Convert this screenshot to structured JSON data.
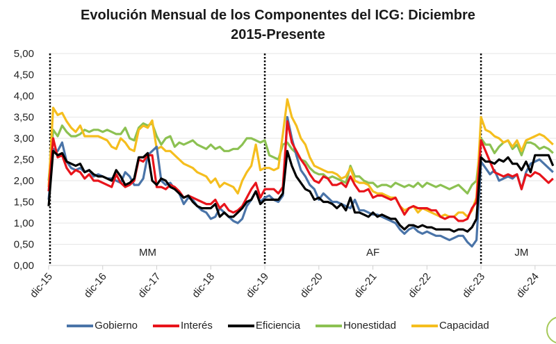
{
  "chart_data": {
    "type": "line",
    "title": "Evolución Mensual de los Componentes del ICG: Diciembre 2015-Presente",
    "title_lines": [
      "Evolución Mensual de los Componentes del ICG: Diciembre",
      "2015-Presente"
    ],
    "xlabel": "",
    "ylabel": "",
    "ylim": [
      0,
      5
    ],
    "yticks": [
      "0,00",
      "0,50",
      "1,00",
      "1,50",
      "2,00",
      "2,50",
      "3,00",
      "3,50",
      "4,00",
      "4,50",
      "5,00"
    ],
    "ytick_values": [
      0,
      0.5,
      1,
      1.5,
      2,
      2.5,
      3,
      3.5,
      4,
      4.5,
      5
    ],
    "x_start": "dic-15",
    "x_frequency": "monthly",
    "n_points": 113,
    "xticks": [
      "dic-15",
      "dic-16",
      "dic-17",
      "dic-18",
      "dic-19",
      "dic-20",
      "dic-21",
      "dic-22",
      "dic-23",
      "dic-24"
    ],
    "xtick_indices": [
      0,
      12,
      24,
      36,
      48,
      60,
      72,
      84,
      96,
      108
    ],
    "grid": true,
    "legend_position": "bottom",
    "period_dividers": [
      {
        "index": 0,
        "style": "dotted"
      },
      {
        "index": 48,
        "style": "dotted"
      },
      {
        "index": 96,
        "style": "dotted"
      }
    ],
    "period_labels": [
      {
        "label": "MM",
        "center_index": 22
      },
      {
        "label": "AF",
        "center_index": 72
      },
      {
        "label": "JM",
        "center_index": 105
      }
    ],
    "series": [
      {
        "name": "Gobierno",
        "color": "#4a74a8",
        "values": [
          1.55,
          2.75,
          2.7,
          2.9,
          2.45,
          2.3,
          2.25,
          2.3,
          2.2,
          2.25,
          2.1,
          2.15,
          2.1,
          2.05,
          2.05,
          2.0,
          1.95,
          2.2,
          2.1,
          1.9,
          1.9,
          2.05,
          2.6,
          2.7,
          2.8,
          2.0,
          1.9,
          1.95,
          1.8,
          1.7,
          1.45,
          1.6,
          1.55,
          1.4,
          1.3,
          1.25,
          1.1,
          1.15,
          1.35,
          1.25,
          1.15,
          1.05,
          1.0,
          1.1,
          1.4,
          1.55,
          1.75,
          1.5,
          1.6,
          1.65,
          1.55,
          1.5,
          1.65,
          3.5,
          3.0,
          2.6,
          2.25,
          2.1,
          1.9,
          1.8,
          1.55,
          1.7,
          1.6,
          1.5,
          1.5,
          1.45,
          1.4,
          1.35,
          1.55,
          1.3,
          1.3,
          1.25,
          1.2,
          1.2,
          1.15,
          1.1,
          1.05,
          1.0,
          0.85,
          0.75,
          0.85,
          0.9,
          0.8,
          0.75,
          0.8,
          0.75,
          0.7,
          0.7,
          0.65,
          0.6,
          0.65,
          0.7,
          0.7,
          0.55,
          0.45,
          0.6,
          2.45,
          2.3,
          2.15,
          2.25,
          2.0,
          2.05,
          2.1,
          2.05,
          2.15,
          1.8,
          2.2,
          2.4,
          2.45,
          2.5,
          2.4,
          2.3,
          2.2
        ]
      },
      {
        "name": "Interés",
        "color": "#e8141b",
        "values": [
          1.75,
          3.0,
          2.55,
          2.6,
          2.3,
          2.15,
          2.25,
          2.2,
          2.05,
          2.15,
          2.0,
          2.0,
          1.95,
          1.9,
          1.85,
          2.15,
          1.95,
          1.85,
          1.9,
          2.0,
          2.5,
          2.45,
          2.6,
          2.6,
          1.85,
          1.85,
          1.8,
          1.9,
          1.85,
          1.75,
          1.6,
          1.65,
          1.6,
          1.55,
          1.5,
          1.45,
          1.45,
          1.55,
          1.35,
          1.45,
          1.3,
          1.25,
          1.3,
          1.4,
          1.6,
          1.8,
          1.95,
          1.6,
          1.8,
          1.8,
          1.8,
          1.7,
          1.85,
          3.4,
          2.9,
          2.7,
          2.5,
          2.35,
          2.15,
          2.0,
          1.95,
          2.1,
          2.05,
          1.9,
          1.9,
          1.95,
          1.85,
          2.1,
          1.9,
          1.75,
          1.75,
          1.8,
          1.6,
          1.65,
          1.65,
          1.6,
          1.55,
          1.6,
          1.4,
          1.2,
          1.35,
          1.4,
          1.35,
          1.35,
          1.35,
          1.3,
          1.3,
          1.15,
          1.1,
          1.15,
          1.15,
          1.05,
          1.05,
          1.1,
          1.35,
          1.5,
          2.95,
          2.7,
          2.45,
          2.2,
          2.15,
          2.1,
          2.15,
          2.1,
          2.15,
          1.8,
          2.15,
          2.1,
          2.2,
          2.15,
          2.05,
          1.95,
          2.05
        ]
      },
      {
        "name": "Eficiencia",
        "color": "#000000",
        "values": [
          1.4,
          2.7,
          2.6,
          2.65,
          2.45,
          2.4,
          2.35,
          2.4,
          2.2,
          2.25,
          2.15,
          2.1,
          2.1,
          2.05,
          2.0,
          2.25,
          2.1,
          1.9,
          1.95,
          2.05,
          2.55,
          2.55,
          2.65,
          2.0,
          1.9,
          2.05,
          2.0,
          1.85,
          1.8,
          1.7,
          1.6,
          1.65,
          1.5,
          1.4,
          1.35,
          1.35,
          1.35,
          1.45,
          1.15,
          1.25,
          1.15,
          1.15,
          1.25,
          1.35,
          1.5,
          1.55,
          1.75,
          1.45,
          1.55,
          1.55,
          1.55,
          1.55,
          1.7,
          2.7,
          2.35,
          2.1,
          1.95,
          1.8,
          1.75,
          1.55,
          1.6,
          1.5,
          1.5,
          1.45,
          1.35,
          1.45,
          1.3,
          1.6,
          1.25,
          1.25,
          1.2,
          1.15,
          1.25,
          1.15,
          1.2,
          1.15,
          1.1,
          1.1,
          0.95,
          0.85,
          0.95,
          0.95,
          0.9,
          0.95,
          0.9,
          0.9,
          0.85,
          0.85,
          0.85,
          0.85,
          0.8,
          0.85,
          0.85,
          0.8,
          0.9,
          1.1,
          2.55,
          2.45,
          2.45,
          2.4,
          2.5,
          2.45,
          2.55,
          2.4,
          2.4,
          2.25,
          2.45,
          2.2,
          2.6,
          2.6,
          2.6,
          2.6,
          2.35
        ]
      },
      {
        "name": "Honestidad",
        "color": "#8cc152",
        "values": [
          2.0,
          3.2,
          3.05,
          3.3,
          3.15,
          3.05,
          3.05,
          3.1,
          3.2,
          3.15,
          3.2,
          3.2,
          3.15,
          3.2,
          3.15,
          3.1,
          3.1,
          3.25,
          3.0,
          2.95,
          3.25,
          3.35,
          3.3,
          3.35,
          3.05,
          2.85,
          3.0,
          3.05,
          2.8,
          2.9,
          2.85,
          2.9,
          2.95,
          2.85,
          2.8,
          2.75,
          2.85,
          2.75,
          2.8,
          2.7,
          2.7,
          2.75,
          2.75,
          2.85,
          3.0,
          3.0,
          2.95,
          2.9,
          2.95,
          2.6,
          2.55,
          2.5,
          2.85,
          2.9,
          2.75,
          2.65,
          2.5,
          2.45,
          2.3,
          2.2,
          2.15,
          2.15,
          2.05,
          2.1,
          2.05,
          2.0,
          1.95,
          2.35,
          2.1,
          2.1,
          2.0,
          1.95,
          1.95,
          1.85,
          1.9,
          1.9,
          1.85,
          1.95,
          1.9,
          1.85,
          1.9,
          1.85,
          1.95,
          1.85,
          1.95,
          1.9,
          1.85,
          1.9,
          1.85,
          1.8,
          1.85,
          1.9,
          1.8,
          1.7,
          1.9,
          2.0,
          3.0,
          2.85,
          2.85,
          2.65,
          2.8,
          2.9,
          2.95,
          2.75,
          2.85,
          2.6,
          2.9,
          2.9,
          2.85,
          2.75,
          2.8,
          2.75,
          2.65
        ]
      },
      {
        "name": "Capacidad",
        "color": "#f5be1e",
        "values": [
          1.85,
          3.72,
          3.55,
          3.6,
          3.4,
          3.25,
          3.15,
          3.3,
          3.05,
          3.05,
          3.05,
          3.05,
          3.0,
          2.95,
          2.8,
          2.75,
          3.0,
          2.9,
          2.75,
          2.7,
          3.2,
          3.3,
          3.25,
          3.42,
          2.75,
          2.8,
          2.7,
          2.7,
          2.6,
          2.5,
          2.4,
          2.35,
          2.3,
          2.2,
          2.15,
          2.1,
          1.95,
          2.05,
          1.85,
          1.95,
          1.9,
          1.85,
          1.7,
          2.0,
          2.2,
          2.35,
          2.85,
          2.25,
          2.3,
          2.3,
          2.25,
          2.3,
          3.1,
          3.92,
          3.5,
          3.3,
          3.0,
          2.85,
          2.55,
          2.35,
          2.3,
          2.25,
          2.2,
          2.2,
          2.15,
          2.05,
          2.1,
          2.3,
          2.0,
          1.95,
          1.95,
          1.9,
          1.75,
          1.7,
          1.7,
          1.65,
          1.6,
          1.6,
          1.4,
          1.3,
          1.35,
          1.4,
          1.25,
          1.35,
          1.3,
          1.25,
          1.2,
          1.15,
          1.2,
          1.15,
          1.15,
          1.25,
          1.25,
          1.15,
          1.3,
          1.6,
          3.5,
          3.2,
          3.15,
          3.05,
          3.0,
          2.9,
          2.95,
          2.8,
          2.95,
          2.7,
          2.95,
          3.0,
          3.05,
          3.1,
          3.05,
          2.95,
          2.85
        ]
      }
    ]
  }
}
